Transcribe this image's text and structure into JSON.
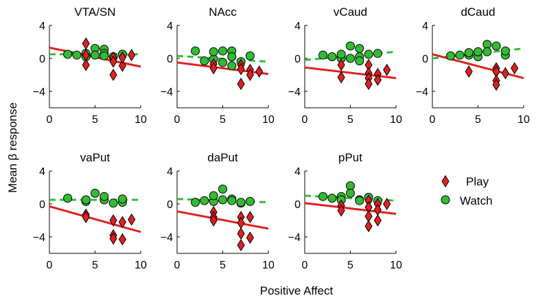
{
  "chart_data": {
    "type": "scatter",
    "figure": {
      "xlabel": "Positive Affect",
      "ylabel": "Mean β response",
      "xlim": [
        0,
        10
      ],
      "ylim": [
        -6,
        4
      ],
      "xticks": [
        0,
        5,
        10
      ],
      "yticks": [
        4,
        0,
        -4
      ],
      "legend": {
        "placement": "right",
        "entries": [
          {
            "name": "Play",
            "marker": "diamond",
            "color": "#e02020"
          },
          {
            "name": "Watch",
            "marker": "circle",
            "color": "#33bb33"
          }
        ]
      },
      "colors": {
        "play": "#e02020",
        "play_line": "#e02020",
        "watch": "#33bb33",
        "watch_line": "#33bb33",
        "axis": "#000000"
      }
    },
    "panels": [
      {
        "title": "VTA/SN",
        "play_fit": [
          [
            0,
            1.3
          ],
          [
            10,
            -1.0
          ]
        ],
        "watch_fit": [
          [
            0,
            0.5
          ],
          [
            10,
            0.5
          ]
        ],
        "play": [
          [
            4,
            1.8
          ],
          [
            4,
            0.4
          ],
          [
            4,
            -0.8
          ],
          [
            7,
            0.1
          ],
          [
            7,
            -0.4
          ],
          [
            7,
            -2.0
          ],
          [
            8,
            -0.9
          ],
          [
            8,
            0.1
          ],
          [
            9,
            0.4
          ]
        ],
        "watch": [
          [
            2,
            0.5
          ],
          [
            3,
            0.4
          ],
          [
            4,
            0.6
          ],
          [
            4,
            0.2
          ],
          [
            5,
            1.2
          ],
          [
            5,
            0.4
          ],
          [
            6,
            1.1
          ],
          [
            6,
            0.6
          ],
          [
            6,
            0.3
          ],
          [
            7,
            0.2
          ],
          [
            8,
            0.5
          ]
        ]
      },
      {
        "title": "NAcc",
        "play_fit": [
          [
            0,
            -0.5
          ],
          [
            10,
            -1.9
          ]
        ],
        "watch_fit": [
          [
            0,
            0.3
          ],
          [
            10,
            -0.4
          ]
        ],
        "play": [
          [
            4,
            -0.7
          ],
          [
            4,
            -1.2
          ],
          [
            7,
            -0.8
          ],
          [
            7,
            -1.3
          ],
          [
            7,
            -3.1
          ],
          [
            8,
            -1.4
          ],
          [
            8,
            -2.0
          ],
          [
            9,
            -1.6
          ]
        ],
        "watch": [
          [
            2,
            0.9
          ],
          [
            3,
            -0.3
          ],
          [
            4,
            -0.1
          ],
          [
            4,
            0.8
          ],
          [
            5,
            0.9
          ],
          [
            5,
            -0.5
          ],
          [
            6,
            0.9
          ],
          [
            6,
            0.2
          ],
          [
            6,
            -0.9
          ],
          [
            7,
            -0.4
          ],
          [
            8,
            0.3
          ]
        ]
      },
      {
        "title": "vCaud",
        "play_fit": [
          [
            0,
            -1.1
          ],
          [
            10,
            -2.4
          ]
        ],
        "watch_fit": [
          [
            0,
            -0.2
          ],
          [
            10,
            0.8
          ]
        ],
        "play": [
          [
            4,
            -0.8
          ],
          [
            4,
            -2.3
          ],
          [
            7,
            -0.8
          ],
          [
            7,
            -1.8
          ],
          [
            7,
            -2.4
          ],
          [
            7,
            -3.1
          ],
          [
            8,
            -1.9
          ],
          [
            8,
            -2.6
          ],
          [
            9,
            -1.4
          ]
        ],
        "watch": [
          [
            2,
            0.4
          ],
          [
            3,
            0.2
          ],
          [
            4,
            0.0
          ],
          [
            4,
            0.5
          ],
          [
            5,
            1.5
          ],
          [
            5,
            0.0
          ],
          [
            6,
            1.2
          ],
          [
            6,
            0.2
          ],
          [
            6,
            -0.3
          ],
          [
            7,
            0.5
          ],
          [
            8,
            0.6
          ]
        ]
      },
      {
        "title": "dCaud",
        "play_fit": [
          [
            0,
            0.5
          ],
          [
            10,
            -2.4
          ]
        ],
        "watch_fit": [
          [
            0,
            0.0
          ],
          [
            10,
            1.2
          ]
        ],
        "play": [
          [
            4,
            -1.6
          ],
          [
            7,
            -1.2
          ],
          [
            7,
            -1.6
          ],
          [
            7,
            -2.7
          ],
          [
            7,
            -3.2
          ],
          [
            8,
            -1.8
          ],
          [
            9,
            -1.2
          ]
        ],
        "watch": [
          [
            2,
            0.3
          ],
          [
            3,
            0.4
          ],
          [
            4,
            0.4
          ],
          [
            4,
            0.7
          ],
          [
            5,
            0.2
          ],
          [
            5,
            0.8
          ],
          [
            6,
            1.7
          ],
          [
            6,
            0.8
          ],
          [
            7,
            1.5
          ],
          [
            8,
            0.4
          ],
          [
            8,
            0.9
          ]
        ]
      },
      {
        "title": "vaPut",
        "play_fit": [
          [
            0,
            -0.3
          ],
          [
            10,
            -3.4
          ]
        ],
        "watch_fit": [
          [
            0,
            0.5
          ],
          [
            10,
            0.5
          ]
        ],
        "play": [
          [
            4,
            -1.3
          ],
          [
            4,
            -1.6
          ],
          [
            7,
            -2.0
          ],
          [
            7,
            -3.8
          ],
          [
            7,
            -4.2
          ],
          [
            8,
            -2.2
          ],
          [
            8,
            -4.3
          ],
          [
            9,
            -1.9
          ]
        ],
        "watch": [
          [
            2,
            0.7
          ],
          [
            4,
            0.3
          ],
          [
            4,
            0.5
          ],
          [
            5,
            1.3
          ],
          [
            6,
            0.5
          ],
          [
            6,
            0.9
          ],
          [
            7,
            0.1
          ],
          [
            8,
            0.2
          ],
          [
            8,
            0.6
          ]
        ]
      },
      {
        "title": "daPut",
        "play_fit": [
          [
            0,
            -0.9
          ],
          [
            10,
            -3.0
          ]
        ],
        "watch_fit": [
          [
            0,
            0.6
          ],
          [
            10,
            0.2
          ]
        ],
        "play": [
          [
            4,
            -1.0
          ],
          [
            4,
            -1.6
          ],
          [
            4,
            -2.0
          ],
          [
            7,
            -1.6
          ],
          [
            7,
            -2.3
          ],
          [
            7,
            -3.6
          ],
          [
            7,
            -5.0
          ],
          [
            8,
            -1.6
          ],
          [
            8,
            -4.1
          ]
        ],
        "watch": [
          [
            2,
            0.2
          ],
          [
            3,
            0.4
          ],
          [
            4,
            0.3
          ],
          [
            4,
            1.0
          ],
          [
            5,
            1.8
          ],
          [
            5,
            0.5
          ],
          [
            6,
            0.6
          ],
          [
            6,
            0.4
          ],
          [
            7,
            0.1
          ],
          [
            7,
            0.2
          ],
          [
            8,
            0.3
          ]
        ]
      },
      {
        "title": "pPut",
        "play_fit": [
          [
            0,
            0.1
          ],
          [
            10,
            -1.2
          ]
        ],
        "watch_fit": [
          [
            0,
            1.0
          ],
          [
            10,
            0.4
          ]
        ],
        "play": [
          [
            4,
            -0.2
          ],
          [
            4,
            -0.8
          ],
          [
            7,
            0.4
          ],
          [
            7,
            -0.4
          ],
          [
            7,
            -1.5
          ],
          [
            7,
            -2.7
          ],
          [
            8,
            0.0
          ],
          [
            8,
            -0.7
          ],
          [
            8,
            -2.0
          ],
          [
            9,
            0.0
          ]
        ],
        "watch": [
          [
            2,
            0.9
          ],
          [
            3,
            0.7
          ],
          [
            4,
            0.9
          ],
          [
            4,
            0.5
          ],
          [
            5,
            2.2
          ],
          [
            5,
            1.3
          ],
          [
            6,
            0.5
          ],
          [
            6,
            0.4
          ],
          [
            7,
            0.8
          ],
          [
            8,
            0.4
          ]
        ]
      }
    ]
  }
}
